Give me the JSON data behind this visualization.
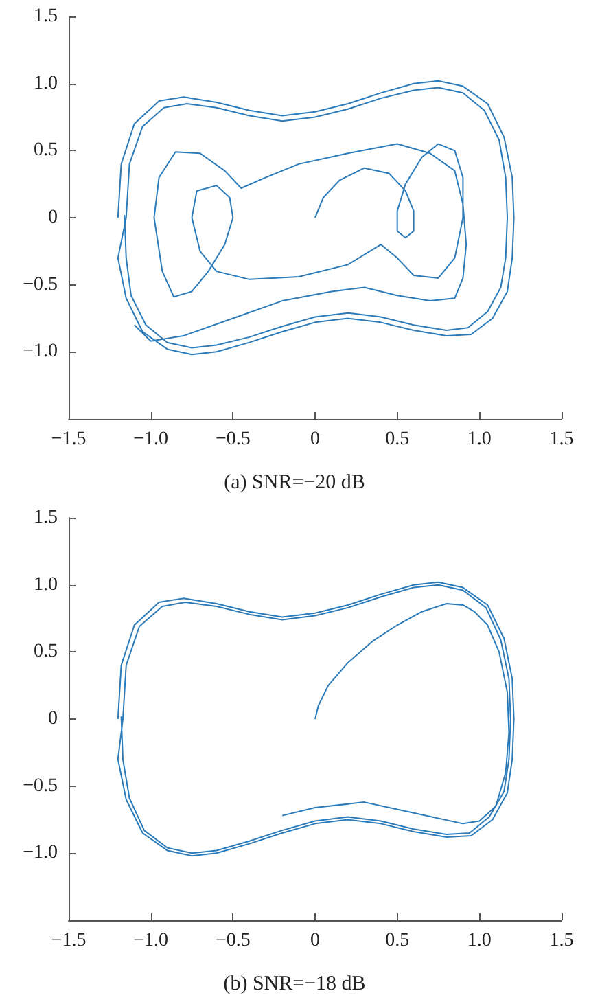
{
  "chart_data": [
    {
      "type": "line",
      "marker": "none",
      "grid": false,
      "annotations": [
        "(a) SNR=−20 dB"
      ],
      "xlim": [
        -1.5,
        1.5
      ],
      "ylim": [
        -1.5,
        1.5
      ],
      "xticks": [
        {
          "value": -1.5,
          "label": "−1.5"
        },
        {
          "value": -1,
          "label": "−1.0"
        },
        {
          "value": -0.5,
          "label": "−0.5"
        },
        {
          "value": 0,
          "label": "0"
        },
        {
          "value": 0.5,
          "label": "0.5"
        },
        {
          "value": 1,
          "label": "1.0"
        },
        {
          "value": 1.5,
          "label": "1.5"
        }
      ],
      "yticks": [
        {
          "value": -1,
          "label": "−1.0"
        },
        {
          "value": -0.5,
          "label": "−0.5"
        },
        {
          "value": 0,
          "label": "0"
        },
        {
          "value": 0.5,
          "label": "0.5"
        },
        {
          "value": 1,
          "label": "1.0"
        },
        {
          "value": 1.5,
          "label": "1.5"
        }
      ],
      "series": [
        {
          "color": "#2b7bba",
          "x": [
            0,
            0.05,
            0.15,
            0.3,
            0.45,
            0.55,
            0.6,
            0.6,
            0.55,
            0.5,
            0.5,
            0.55,
            0.65,
            0.75,
            0.85,
            0.9,
            0.9,
            0.85,
            0.75,
            0.6,
            0.5,
            0.4,
            0.2,
            -0.1,
            -0.4,
            -0.6,
            -0.7,
            -0.75,
            -0.72,
            -0.6,
            -0.52,
            -0.5,
            -0.55,
            -0.65,
            -0.75,
            -0.86,
            -0.93,
            -0.98,
            -0.95,
            -0.85,
            -0.7,
            -0.55,
            -0.45,
            -0.3,
            -0.1,
            0.2,
            0.5,
            0.7,
            0.85,
            0.9,
            0.92,
            0.9,
            0.85,
            0.7,
            0.5,
            0.3,
            0.1,
            -0.2,
            -0.5,
            -0.8,
            -1.0,
            -1.1
          ],
          "values": [
            0,
            0.15,
            0.28,
            0.37,
            0.33,
            0.2,
            0.05,
            -0.1,
            -0.15,
            -0.1,
            0.05,
            0.25,
            0.45,
            0.55,
            0.5,
            0.3,
            0,
            -0.3,
            -0.45,
            -0.43,
            -0.3,
            -0.2,
            -0.35,
            -0.44,
            -0.46,
            -0.4,
            -0.25,
            0,
            0.2,
            0.24,
            0.15,
            0,
            -0.2,
            -0.4,
            -0.55,
            -0.59,
            -0.4,
            0,
            0.3,
            0.49,
            0.48,
            0.35,
            0.22,
            0.3,
            0.4,
            0.48,
            0.55,
            0.48,
            0.35,
            0.1,
            -0.2,
            -0.45,
            -0.6,
            -0.62,
            -0.58,
            -0.52,
            -0.55,
            -0.62,
            -0.75,
            -0.88,
            -0.92,
            -0.8
          ]
        },
        {
          "color": "#2b7bba",
          "x": [
            -1.2,
            -1.18,
            -1.1,
            -0.95,
            -0.8,
            -0.6,
            -0.4,
            -0.2,
            0,
            0.2,
            0.4,
            0.6,
            0.75,
            0.9,
            1.05,
            1.15,
            1.2,
            1.21,
            1.2,
            1.17,
            1.08,
            0.95,
            0.8,
            0.6,
            0.4,
            0.2,
            0,
            -0.2,
            -0.4,
            -0.6,
            -0.75,
            -0.9,
            -1.05,
            -1.15,
            -1.2,
            -1.15,
            -1.13,
            -1.05,
            -0.92,
            -0.78,
            -0.6,
            -0.4,
            -0.2,
            0,
            0.2,
            0.4,
            0.6,
            0.75,
            0.9,
            1.03,
            1.12,
            1.16,
            1.17,
            1.16,
            1.13,
            1.05,
            0.93,
            0.8,
            0.6,
            0.4,
            0.2,
            0,
            -0.2,
            -0.4,
            -0.6,
            -0.75,
            -0.9,
            -1.03,
            -1.12,
            -1.15,
            -1.16
          ],
          "values": [
            0,
            0.4,
            0.7,
            0.87,
            0.9,
            0.86,
            0.8,
            0.76,
            0.79,
            0.85,
            0.93,
            1.0,
            1.02,
            0.98,
            0.85,
            0.6,
            0.3,
            0,
            -0.3,
            -0.55,
            -0.75,
            -0.87,
            -0.88,
            -0.84,
            -0.78,
            -0.75,
            -0.78,
            -0.85,
            -0.93,
            -1.0,
            -1.02,
            -0.98,
            -0.85,
            -0.6,
            -0.3,
            0,
            0.4,
            0.68,
            0.82,
            0.85,
            0.82,
            0.76,
            0.72,
            0.75,
            0.81,
            0.89,
            0.95,
            0.97,
            0.93,
            0.8,
            0.58,
            0.3,
            0,
            -0.3,
            -0.52,
            -0.7,
            -0.82,
            -0.84,
            -0.8,
            -0.74,
            -0.71,
            -0.74,
            -0.81,
            -0.89,
            -0.95,
            -0.97,
            -0.93,
            -0.8,
            -0.58,
            -0.3,
            0.02
          ]
        }
      ]
    },
    {
      "type": "line",
      "marker": "none",
      "grid": false,
      "annotations": [
        "(b) SNR=−18 dB"
      ],
      "xlim": [
        -1.5,
        1.5
      ],
      "ylim": [
        -1.5,
        1.5
      ],
      "xticks": [
        {
          "value": -1.5,
          "label": "−1.5"
        },
        {
          "value": -1,
          "label": "−1.0"
        },
        {
          "value": -0.5,
          "label": "−0.5"
        },
        {
          "value": 0,
          "label": "0"
        },
        {
          "value": 0.5,
          "label": "0.5"
        },
        {
          "value": 1,
          "label": "1.0"
        },
        {
          "value": 1.5,
          "label": "1.5"
        }
      ],
      "yticks": [
        {
          "value": -1,
          "label": "−1.0"
        },
        {
          "value": -0.5,
          "label": "−0.5"
        },
        {
          "value": 0,
          "label": "0"
        },
        {
          "value": 0.5,
          "label": "0.5"
        },
        {
          "value": 1,
          "label": "1.0"
        },
        {
          "value": 1.5,
          "label": "1.5"
        }
      ],
      "series": [
        {
          "color": "#2b7bba",
          "x": [
            0,
            0.02,
            0.08,
            0.2,
            0.35,
            0.5,
            0.65,
            0.8,
            0.9,
            0.97,
            1.05,
            1.12,
            1.17,
            1.18,
            1.16,
            1.1,
            1.0,
            0.9,
            0.6,
            0.3,
            0,
            -0.2
          ],
          "values": [
            0,
            0.1,
            0.25,
            0.42,
            0.58,
            0.7,
            0.8,
            0.86,
            0.85,
            0.8,
            0.7,
            0.5,
            0.2,
            -0.1,
            -0.4,
            -0.65,
            -0.76,
            -0.78,
            -0.7,
            -0.62,
            -0.66,
            -0.72
          ]
        },
        {
          "color": "#2b7bba",
          "x": [
            -1.2,
            -1.18,
            -1.1,
            -0.95,
            -0.8,
            -0.6,
            -0.4,
            -0.2,
            0,
            0.2,
            0.4,
            0.6,
            0.75,
            0.9,
            1.05,
            1.15,
            1.2,
            1.21,
            1.2,
            1.17,
            1.08,
            0.95,
            0.8,
            0.6,
            0.4,
            0.2,
            0,
            -0.2,
            -0.4,
            -0.6,
            -0.75,
            -0.9,
            -1.05,
            -1.15,
            -1.2,
            -1.17,
            -1.15,
            -1.07,
            -0.93,
            -0.79,
            -0.6,
            -0.4,
            -0.2,
            0,
            0.2,
            0.4,
            0.6,
            0.75,
            0.9,
            1.04,
            1.13,
            1.18,
            1.19,
            1.18,
            1.15,
            1.06,
            0.94,
            0.8,
            0.6,
            0.4,
            0.2,
            0,
            -0.2,
            -0.4,
            -0.6,
            -0.75,
            -0.9,
            -1.04,
            -1.13,
            -1.17,
            -1.18
          ],
          "values": [
            0,
            0.4,
            0.7,
            0.87,
            0.9,
            0.86,
            0.8,
            0.76,
            0.79,
            0.85,
            0.93,
            1.0,
            1.02,
            0.98,
            0.85,
            0.6,
            0.3,
            0,
            -0.3,
            -0.55,
            -0.75,
            -0.87,
            -0.88,
            -0.84,
            -0.78,
            -0.75,
            -0.78,
            -0.85,
            -0.93,
            -1.0,
            -1.02,
            -0.98,
            -0.85,
            -0.6,
            -0.3,
            0,
            0.4,
            0.69,
            0.84,
            0.87,
            0.84,
            0.78,
            0.74,
            0.77,
            0.83,
            0.91,
            0.98,
            1.0,
            0.96,
            0.83,
            0.59,
            0.3,
            0,
            -0.3,
            -0.54,
            -0.73,
            -0.85,
            -0.86,
            -0.82,
            -0.76,
            -0.73,
            -0.76,
            -0.83,
            -0.91,
            -0.98,
            -1.0,
            -0.96,
            -0.83,
            -0.59,
            -0.3,
            0.02
          ]
        }
      ]
    }
  ]
}
